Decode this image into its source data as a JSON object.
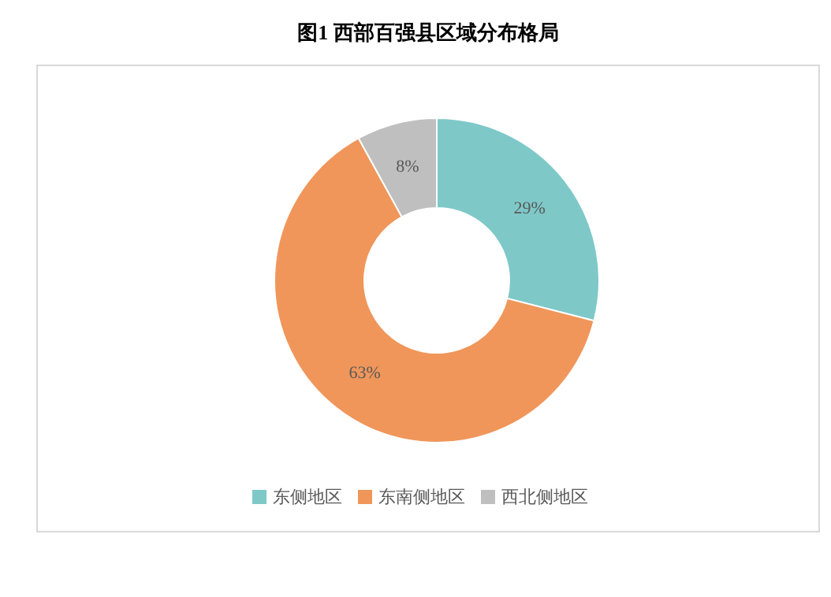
{
  "chart_data": {
    "type": "donut",
    "title": "图1  西部百强县区域分布格局",
    "categories": [
      "东侧地区",
      "东南侧地区",
      "西北侧地区"
    ],
    "values": [
      29,
      63,
      8
    ],
    "value_labels": [
      "29%",
      "63%",
      "8%"
    ],
    "colors": [
      "#7ec8c8",
      "#f0965a",
      "#bfbfbf"
    ],
    "legend": "bottom"
  }
}
